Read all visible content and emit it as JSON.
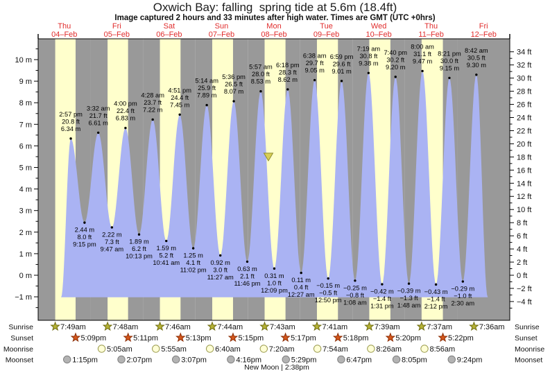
{
  "title": "Oxwich Bay: falling  spring tide at 5.6m (18.4ft)",
  "subtitle": "Image captured 2 hours and 33 minutes after high water. Times are GMT (UTC +0hrs)",
  "row_labels": {
    "sunrise": "Sunrise",
    "sunset": "Sunset",
    "moonrise": "Moonrise",
    "moonset": "Moonset"
  },
  "moon_phase": {
    "label": "New Moon | 2:38pm",
    "name": "New Moon",
    "time": "2:38pm"
  },
  "colors": {
    "night_band": "#999999",
    "day_band": "#ffffcc",
    "tide_fill": "#aab3f3",
    "frame": "#000000",
    "day_header": "#e02b2b",
    "label_text": "#111111",
    "sunrise_fill": "#b5b235",
    "sunrise_stroke": "#6f6c10",
    "sunset_fill": "#d4571c",
    "sunset_stroke": "#8c2d05",
    "moonrise_fill": "#ffffd6",
    "moonrise_stroke": "#99994d",
    "moonset_fill": "#b3b3b3",
    "moonset_stroke": "#7d7d7d",
    "marker_fill": "#d9cf55",
    "marker_stroke": "#8e8c2e"
  },
  "chart_data": {
    "type": "area",
    "title": "Oxwich Bay: falling  spring tide at 5.6m (18.4ft)",
    "left_axis": {
      "unit": "m",
      "min": -1,
      "max": 10,
      "tick_step": 1,
      "minor_step": 0.5
    },
    "right_axis": {
      "unit": "ft",
      "min": -6,
      "max": 34,
      "tick_step": 2,
      "minor_step": 1
    },
    "days": [
      {
        "weekday": "Thu",
        "date": "04-Feb",
        "sunrise": "7:49am",
        "sunset": "5:09pm",
        "moonrise": null,
        "moonset": "1:15pm"
      },
      {
        "weekday": "Fri",
        "date": "05-Feb",
        "sunrise": "7:48am",
        "sunset": "5:11pm",
        "moonrise": "5:05am",
        "moonset": "2:07pm"
      },
      {
        "weekday": "Sat",
        "date": "06-Feb",
        "sunrise": "7:46am",
        "sunset": "5:13pm",
        "moonrise": "5:55am",
        "moonset": "3:07pm"
      },
      {
        "weekday": "Sun",
        "date": "07-Feb",
        "sunrise": "7:44am",
        "sunset": "5:15pm",
        "moonrise": "6:40am",
        "moonset": "4:16pm"
      },
      {
        "weekday": "Mon",
        "date": "08-Feb",
        "sunrise": "7:43am",
        "sunset": "5:17pm",
        "moonrise": "7:20am",
        "moonset": "5:29pm"
      },
      {
        "weekday": "Tue",
        "date": "09-Feb",
        "sunrise": "7:41am",
        "sunset": "5:18pm",
        "moonrise": "7:54am",
        "moonset": "6:47pm"
      },
      {
        "weekday": "Wed",
        "date": "10-Feb",
        "sunrise": "7:39am",
        "sunset": "5:20pm",
        "moonrise": "8:26am",
        "moonset": "8:05pm"
      },
      {
        "weekday": "Thu",
        "date": "11-Feb",
        "sunrise": "7:37am",
        "sunset": "5:22pm",
        "moonrise": "8:56am",
        "moonset": "9:24pm"
      },
      {
        "weekday": "Fri",
        "date": "12-Feb",
        "sunrise": "7:36am",
        "sunset": null,
        "moonrise": null,
        "moonset": null
      }
    ],
    "tide_events": [
      {
        "day": 0,
        "type": "high",
        "time": "2:57 pm",
        "ft": "20.8 ft",
        "m": "6.34 m"
      },
      {
        "day": 0,
        "type": "low",
        "time": "9:15 pm",
        "ft": "8.0 ft",
        "m": "2.44 m"
      },
      {
        "day": 1,
        "type": "high",
        "time": "3:32 am",
        "ft": "21.7 ft",
        "m": "6.61 m"
      },
      {
        "day": 1,
        "type": "low",
        "time": "9:47 am",
        "ft": "7.3 ft",
        "m": "2.22 m"
      },
      {
        "day": 1,
        "type": "high",
        "time": "4:00 pm",
        "ft": "22.4 ft",
        "m": "6.83 m"
      },
      {
        "day": 1,
        "type": "low",
        "time": "10:13 pm",
        "ft": "6.2 ft",
        "m": "1.89 m"
      },
      {
        "day": 2,
        "type": "high",
        "time": "4:28 am",
        "ft": "23.7 ft",
        "m": "7.22 m"
      },
      {
        "day": 2,
        "type": "low",
        "time": "10:41 am",
        "ft": "5.2 ft",
        "m": "1.59 m"
      },
      {
        "day": 2,
        "type": "high",
        "time": "4:51 pm",
        "ft": "24.4 ft",
        "m": "7.45 m"
      },
      {
        "day": 2,
        "type": "low",
        "time": "11:02 pm",
        "ft": "4.1 ft",
        "m": "1.25 m"
      },
      {
        "day": 3,
        "type": "high",
        "time": "5:14 am",
        "ft": "25.9 ft",
        "m": "7.89 m"
      },
      {
        "day": 3,
        "type": "low",
        "time": "11:27 am",
        "ft": "3.0 ft",
        "m": "0.92 m"
      },
      {
        "day": 3,
        "type": "high",
        "time": "5:36 pm",
        "ft": "26.5 ft",
        "m": "8.07 m"
      },
      {
        "day": 3,
        "type": "low",
        "time": "11:46 pm",
        "ft": "2.1 ft",
        "m": "0.63 m"
      },
      {
        "day": 4,
        "type": "high",
        "time": "5:57 am",
        "ft": "28.0 ft",
        "m": "8.53 m"
      },
      {
        "day": 4,
        "type": "low",
        "time": "12:09 pm",
        "ft": "1.0 ft",
        "m": "0.31 m"
      },
      {
        "day": 4,
        "type": "high",
        "time": "6:18 pm",
        "ft": "28.3 ft",
        "m": "8.62 m"
      },
      {
        "day": 5,
        "type": "low",
        "time": "12:27 am",
        "ft": "0.4 ft",
        "m": "0.11 m"
      },
      {
        "day": 5,
        "type": "high",
        "time": "6:38 am",
        "ft": "29.7 ft",
        "m": "9.05 m"
      },
      {
        "day": 5,
        "type": "low",
        "time": "12:50 pm",
        "ft": "-0.5 ft",
        "m": "-0.15 m"
      },
      {
        "day": 5,
        "type": "high",
        "time": "6:59 pm",
        "ft": "29.6 ft",
        "m": "9.01 m"
      },
      {
        "day": 6,
        "type": "low",
        "time": "1:08 am",
        "ft": "-0.8 ft",
        "m": "-0.25 m"
      },
      {
        "day": 6,
        "type": "high",
        "time": "7:19 am",
        "ft": "30.8 ft",
        "m": "9.38 m"
      },
      {
        "day": 6,
        "type": "low",
        "time": "1:31 pm",
        "ft": "-1.4 ft",
        "m": "-0.42 m"
      },
      {
        "day": 6,
        "type": "high",
        "time": "7:40 pm",
        "ft": "30.2 ft",
        "m": "9.20 m"
      },
      {
        "day": 7,
        "type": "low",
        "time": "1:48 am",
        "ft": "-1.3 ft",
        "m": "-0.39 m"
      },
      {
        "day": 7,
        "type": "high",
        "time": "8:00 am",
        "ft": "31.1 ft",
        "m": "9.47 m"
      },
      {
        "day": 7,
        "type": "low",
        "time": "2:12 pm",
        "ft": "-1.4 ft",
        "m": "-0.43 m"
      },
      {
        "day": 7,
        "type": "high",
        "time": "8:21 pm",
        "ft": "30.0 ft",
        "m": "9.15 m"
      },
      {
        "day": 8,
        "type": "low",
        "time": "2:30 am",
        "ft": "-1.0 ft",
        "m": "-0.29 m"
      },
      {
        "day": 8,
        "type": "high",
        "time": "8:42 am",
        "ft": "30.5 ft",
        "m": "9.30 m"
      }
    ],
    "current_level_marker": {
      "level_m": 5.6,
      "day": 4,
      "time": "8:30 am",
      "shape": "down-triangle"
    }
  }
}
